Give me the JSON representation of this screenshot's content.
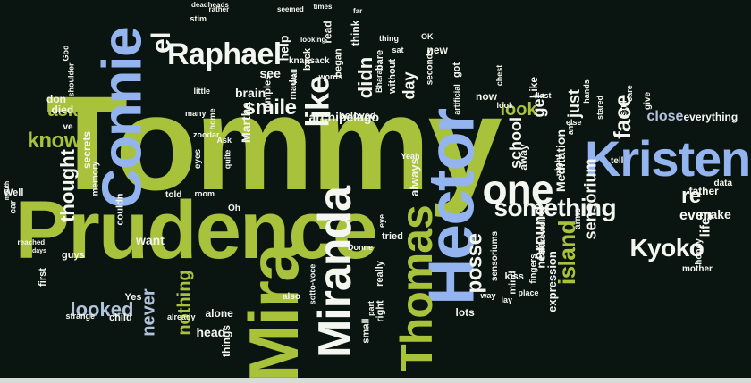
{
  "palette": {
    "background": "#0a1410",
    "lime": "#a8c23c",
    "lightblue": "#93b4ee",
    "white": "#f4f6f0",
    "pale": "#e6ecd4",
    "bluegray": "#b3c3dc"
  },
  "words": [
    {
      "text": "Tommy",
      "color": "lime"
    },
    {
      "text": "Prudence",
      "color": "lime"
    },
    {
      "text": "Hector",
      "color": "lightblue"
    },
    {
      "text": "Connie",
      "color": "lightblue"
    },
    {
      "text": "Mira",
      "color": "lime"
    },
    {
      "text": "Thomas",
      "color": "lime"
    },
    {
      "text": "Miranda",
      "color": "white"
    },
    {
      "text": "Kristen",
      "color": "lightblue"
    },
    {
      "text": "Raphael",
      "color": "white"
    },
    {
      "text": "one",
      "color": "white"
    },
    {
      "text": "something",
      "color": "white"
    },
    {
      "text": "Kyoko",
      "color": "white"
    },
    {
      "text": "like",
      "color": "white"
    },
    {
      "text": "re",
      "color": "white"
    },
    {
      "text": "face",
      "color": "white"
    },
    {
      "text": "island",
      "color": "lime"
    },
    {
      "text": "posse",
      "color": "white"
    },
    {
      "text": "know",
      "color": "lime"
    },
    {
      "text": "thought",
      "color": "white"
    },
    {
      "text": "smile",
      "color": "white"
    },
    {
      "text": "asked",
      "color": "lime"
    },
    {
      "text": "looked",
      "color": "bluegray"
    },
    {
      "text": "el",
      "color": "white"
    },
    {
      "text": "didn",
      "color": "white"
    },
    {
      "text": "never",
      "color": "bluegray"
    },
    {
      "text": "nothing",
      "color": "lime"
    },
    {
      "text": "look",
      "color": "lime"
    },
    {
      "text": "sensorium",
      "color": "white"
    },
    {
      "text": "around",
      "color": "white"
    },
    {
      "text": "get",
      "color": "white"
    },
    {
      "text": "just",
      "color": "white"
    },
    {
      "text": "school",
      "color": "white"
    },
    {
      "text": "close",
      "color": "bluegray"
    },
    {
      "text": "even",
      "color": "white"
    },
    {
      "text": "life",
      "color": "white"
    },
    {
      "text": "make",
      "color": "white"
    },
    {
      "text": "day",
      "color": "white"
    },
    {
      "text": "Martha",
      "color": "white"
    },
    {
      "text": "archipelago",
      "color": "white"
    },
    {
      "text": "brain",
      "color": "white"
    },
    {
      "text": "see",
      "color": "white"
    },
    {
      "text": "help",
      "color": "white"
    },
    {
      "text": "Meditation",
      "color": "white"
    },
    {
      "text": "everything",
      "color": "white"
    },
    {
      "text": "father",
      "color": "white"
    },
    {
      "text": "head",
      "color": "white"
    },
    {
      "text": "want",
      "color": "white"
    },
    {
      "text": "alone",
      "color": "white"
    },
    {
      "text": "lots",
      "color": "white"
    },
    {
      "text": "secrets",
      "color": "white"
    },
    {
      "text": "died",
      "color": "white"
    },
    {
      "text": "don",
      "color": "white"
    },
    {
      "text": "now",
      "color": "white"
    },
    {
      "text": "Like",
      "color": "white"
    },
    {
      "text": "dimples",
      "color": "white"
    },
    {
      "text": "made",
      "color": "white"
    },
    {
      "text": "beloved",
      "color": "white"
    },
    {
      "text": "always",
      "color": "white"
    },
    {
      "text": "away",
      "color": "white"
    },
    {
      "text": "need",
      "color": "white"
    },
    {
      "text": "expression",
      "color": "white"
    },
    {
      "text": "kiss",
      "color": "white"
    },
    {
      "text": "mind",
      "color": "white"
    },
    {
      "text": "things",
      "color": "white"
    },
    {
      "text": "Yes",
      "color": "white"
    },
    {
      "text": "child",
      "color": "white"
    },
    {
      "text": "first",
      "color": "white"
    },
    {
      "text": "guys",
      "color": "white"
    },
    {
      "text": "couldn",
      "color": "white"
    },
    {
      "text": "memory",
      "color": "white"
    },
    {
      "text": "told",
      "color": "white"
    },
    {
      "text": "room",
      "color": "white"
    },
    {
      "text": "tried",
      "color": "white"
    },
    {
      "text": "right",
      "color": "white"
    },
    {
      "text": "small",
      "color": "white"
    },
    {
      "text": "really",
      "color": "white"
    },
    {
      "text": "also",
      "color": "white"
    },
    {
      "text": "sotto-voce",
      "color": "white"
    },
    {
      "text": "read",
      "color": "white"
    },
    {
      "text": "think",
      "color": "white"
    },
    {
      "text": "bare",
      "color": "white"
    },
    {
      "text": "began",
      "color": "white"
    },
    {
      "text": "back",
      "color": "white"
    },
    {
      "text": "knapsack",
      "color": "white"
    },
    {
      "text": "without",
      "color": "white"
    },
    {
      "text": "got",
      "color": "white"
    },
    {
      "text": "seconds",
      "color": "white"
    },
    {
      "text": "new",
      "color": "white"
    },
    {
      "text": "tell",
      "color": "white"
    },
    {
      "text": "arms",
      "color": "white"
    },
    {
      "text": "night",
      "color": "white"
    },
    {
      "text": "sensoriums",
      "color": "white"
    },
    {
      "text": "Farewell",
      "color": "white"
    },
    {
      "text": "fingers",
      "color": "white"
    },
    {
      "text": "mother",
      "color": "white"
    },
    {
      "text": "honey",
      "color": "white"
    },
    {
      "text": "data",
      "color": "white"
    },
    {
      "text": "still",
      "color": "white"
    },
    {
      "text": "give",
      "color": "white"
    },
    {
      "text": "care",
      "color": "white"
    },
    {
      "text": "artificial",
      "color": "white"
    },
    {
      "text": "chest",
      "color": "white"
    },
    {
      "text": "Bharati",
      "color": "white"
    },
    {
      "text": "lay",
      "color": "white"
    },
    {
      "text": "way",
      "color": "white"
    },
    {
      "text": "place",
      "color": "white"
    },
    {
      "text": "part",
      "color": "white"
    },
    {
      "text": "strange",
      "color": "white"
    },
    {
      "text": "already",
      "color": "white"
    },
    {
      "text": "stim",
      "color": "white"
    },
    {
      "text": "deadheads",
      "color": "white"
    },
    {
      "text": "rather",
      "color": "white"
    },
    {
      "text": "times",
      "color": "white"
    },
    {
      "text": "far",
      "color": "white"
    },
    {
      "text": "seemed",
      "color": "white"
    },
    {
      "text": "looking",
      "color": "white"
    },
    {
      "text": "thing",
      "color": "white"
    },
    {
      "text": "OK",
      "color": "white"
    },
    {
      "text": "sat",
      "color": "white"
    },
    {
      "text": "words",
      "color": "white"
    },
    {
      "text": "wall",
      "color": "white"
    },
    {
      "text": "little",
      "color": "white"
    },
    {
      "text": "shoulder",
      "color": "white"
    },
    {
      "text": "God",
      "color": "white"
    },
    {
      "text": "ve",
      "color": "white"
    },
    {
      "text": "Well",
      "color": "white"
    },
    {
      "text": "car",
      "color": "white"
    },
    {
      "text": "mouth",
      "color": "white"
    },
    {
      "text": "days",
      "color": "white"
    },
    {
      "text": "reached",
      "color": "white"
    },
    {
      "text": "eyes",
      "color": "white"
    },
    {
      "text": "Oh",
      "color": "white"
    },
    {
      "text": "quite",
      "color": "white"
    },
    {
      "text": "Ask",
      "color": "white"
    },
    {
      "text": "home",
      "color": "white"
    },
    {
      "text": "many",
      "color": "white"
    },
    {
      "text": "zoodar",
      "color": "white"
    },
    {
      "text": "Yeah",
      "color": "white"
    },
    {
      "text": "Donne",
      "color": "white"
    },
    {
      "text": "eye",
      "color": "white"
    },
    {
      "text": "am",
      "color": "white"
    },
    {
      "text": "hands",
      "color": "white"
    },
    {
      "text": "last",
      "color": "white"
    },
    {
      "text": "stared",
      "color": "white"
    },
    {
      "text": "else",
      "color": "white"
    },
    {
      "text": "look",
      "color": "white"
    }
  ]
}
